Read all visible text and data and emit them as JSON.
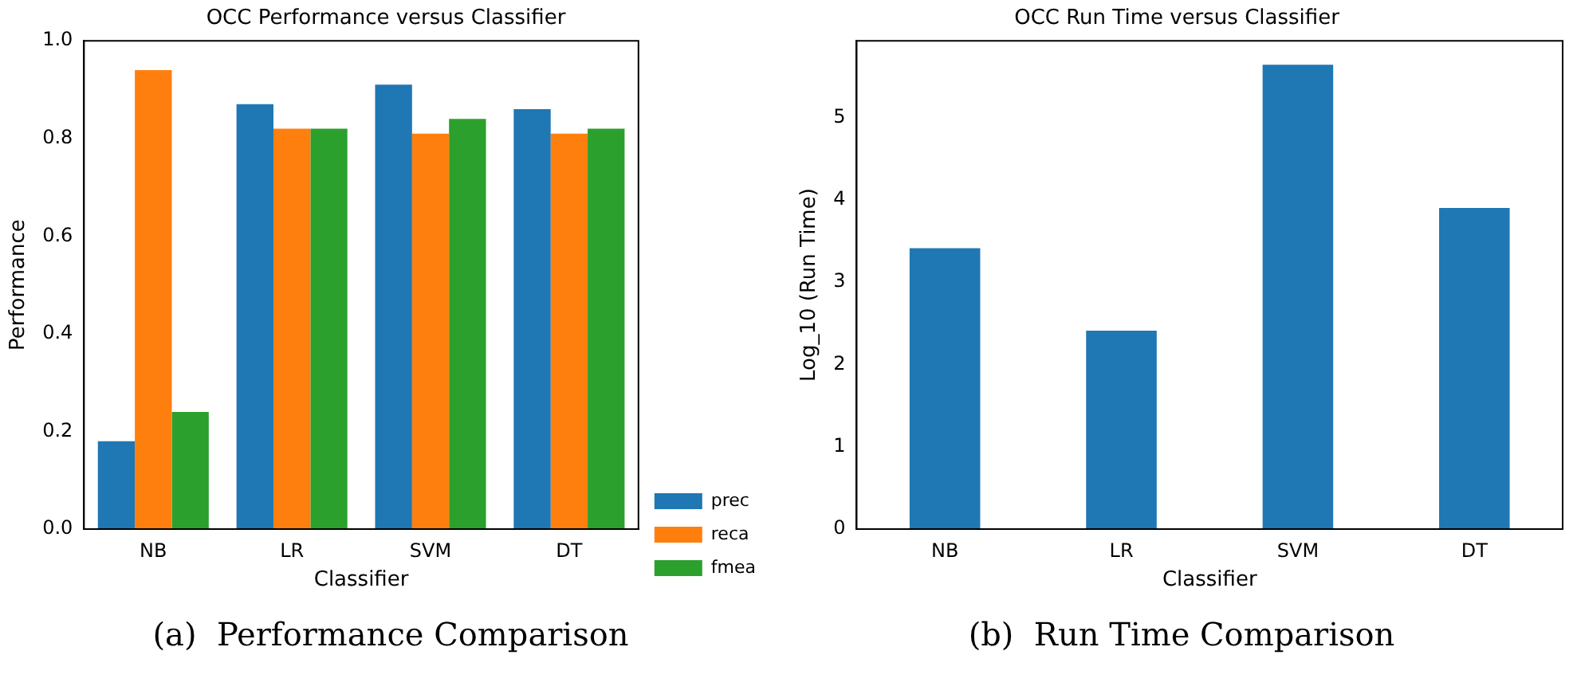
{
  "chart_data": [
    {
      "type": "bar",
      "title": "OCC Performance versus Classifier",
      "xlabel": "Classifier",
      "ylabel": "Performance",
      "categories": [
        "NB",
        "LR",
        "SVM",
        "DT"
      ],
      "series": [
        {
          "name": "prec",
          "color": "#1f77b4",
          "values": [
            0.18,
            0.87,
            0.91,
            0.86
          ]
        },
        {
          "name": "reca",
          "color": "#ff7f0e",
          "values": [
            0.94,
            0.82,
            0.81,
            0.81
          ]
        },
        {
          "name": "fmea",
          "color": "#2ca02c",
          "values": [
            0.24,
            0.82,
            0.84,
            0.82
          ]
        }
      ],
      "ylim": [
        0,
        1
      ],
      "yticks": [
        {
          "value": 0,
          "label": "0.0"
        },
        {
          "value": 0.2,
          "label": "0.2"
        },
        {
          "value": 0.4,
          "label": "0.4"
        },
        {
          "value": 0.6,
          "label": "0.6"
        },
        {
          "value": 0.8,
          "label": "0.8"
        },
        {
          "value": 1,
          "label": "1.0"
        }
      ],
      "legend": "bottom right",
      "annotations": [
        "(a)  Performance Comparison"
      ]
    },
    {
      "type": "bar",
      "title": "OCC Run Time versus Classifier",
      "xlabel": "Classifier",
      "ylabel": "Log_10 (Run Time)",
      "categories": [
        "NB",
        "LR",
        "SVM",
        "DT"
      ],
      "values": [
        3.41,
        2.41,
        5.64,
        3.9
      ],
      "color": "#1f77b4",
      "ylim": [
        0,
        5.93
      ],
      "yticks": [
        0,
        1,
        2,
        3,
        4,
        5
      ],
      "annotations": [
        "(b)  Run Time Comparison"
      ]
    }
  ]
}
